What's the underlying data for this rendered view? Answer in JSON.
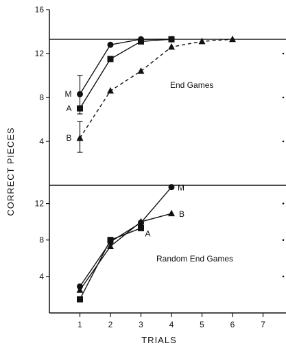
{
  "chart_data": [
    {
      "type": "line",
      "annotation": "End Games",
      "xlim": [
        0,
        8
      ],
      "ylim": [
        0,
        16
      ],
      "yticks": [
        4,
        8,
        12,
        16
      ],
      "reference_line": 13.3,
      "series": [
        {
          "label": "M",
          "marker": "circle",
          "line": "solid",
          "x": [
            1,
            2,
            3,
            4
          ],
          "y": [
            8.3,
            12.8,
            13.3,
            13.3
          ],
          "error": [
            {
              "x": 1,
              "low": 6.5,
              "high": 10.0
            }
          ]
        },
        {
          "label": "A",
          "marker": "square",
          "line": "solid",
          "x": [
            1,
            2,
            3,
            4
          ],
          "y": [
            7.0,
            11.5,
            13.1,
            13.3
          ]
        },
        {
          "label": "B",
          "marker": "triangle",
          "line": "dashed",
          "x": [
            1,
            2,
            3,
            4,
            5,
            6
          ],
          "y": [
            4.3,
            8.6,
            10.4,
            12.6,
            13.1,
            13.3
          ],
          "error": [
            {
              "x": 1,
              "low": 3.0,
              "high": 5.8
            }
          ]
        }
      ]
    },
    {
      "type": "line",
      "annotation": "Random End Games",
      "xlim": [
        0,
        8
      ],
      "ylim": [
        0,
        14
      ],
      "yticks": [
        4,
        8,
        12
      ],
      "series": [
        {
          "label": "M",
          "marker": "circle",
          "line": "solid",
          "x": [
            1,
            2,
            3,
            4
          ],
          "y": [
            2.9,
            7.8,
            9.9,
            13.8
          ]
        },
        {
          "label": "A",
          "marker": "square",
          "line": "solid",
          "x": [
            1,
            2,
            3
          ],
          "y": [
            1.5,
            8.0,
            9.3
          ]
        },
        {
          "label": "B",
          "marker": "triangle",
          "line": "solid",
          "x": [
            1,
            2,
            3,
            4
          ],
          "y": [
            2.5,
            7.3,
            10.0,
            10.9
          ]
        }
      ]
    }
  ],
  "axes": {
    "ylabel": "CORRECT  PIECES",
    "xlabel": "TRIALS",
    "xticks": [
      "1",
      "2",
      "3",
      "4",
      "5",
      "6",
      "7"
    ]
  }
}
